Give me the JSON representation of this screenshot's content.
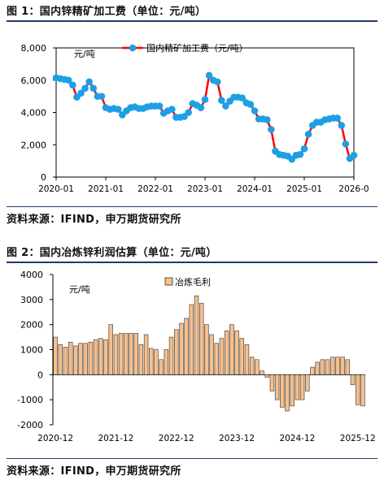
{
  "figure1": {
    "caption": "图 1：国内锌精矿加工费（单位：元/吨）",
    "source": "资料来源：IFIND，申万期货研究所",
    "chart_data": {
      "type": "line",
      "title": "",
      "unit_label": "元/吨",
      "ylim": [
        0,
        8000
      ],
      "yticks": [
        "0",
        "2,000",
        "4,000",
        "6,000",
        "8,000"
      ],
      "ytick_values": [
        0,
        2000,
        4000,
        6000,
        8000
      ],
      "xtick_labels": [
        "2020-01",
        "2021-01",
        "2022-01",
        "2023-01",
        "2024-01",
        "2025-01",
        "2026-0"
      ],
      "xtick_index": [
        0,
        12,
        24,
        36,
        48,
        60,
        72
      ],
      "legend_position": "top-center",
      "series": [
        {
          "name": "国内精矿加工费（元/吨）",
          "color": "#ff0000",
          "marker_color": "#1e9fe3",
          "values": [
            6150,
            6100,
            6050,
            6000,
            5700,
            4950,
            5200,
            5500,
            5900,
            5500,
            5000,
            5000,
            4300,
            4200,
            4250,
            4200,
            3850,
            4100,
            4300,
            4350,
            4250,
            4250,
            4350,
            4400,
            4400,
            4400,
            3950,
            4100,
            4200,
            3700,
            3700,
            3750,
            4000,
            4550,
            4450,
            4300,
            4800,
            6300,
            6000,
            5900,
            4750,
            4400,
            4700,
            4950,
            4950,
            4900,
            4600,
            4500,
            4100,
            3600,
            3600,
            3550,
            2950,
            1600,
            1400,
            1350,
            1300,
            1100,
            1350,
            1400,
            1750,
            2650,
            3200,
            3400,
            3400,
            3550,
            3600,
            3650,
            3650,
            3200,
            2050,
            1150,
            1350
          ]
        }
      ]
    }
  },
  "figure2": {
    "caption": "图 2：国内冶炼锌利润估算（单位：元/吨）",
    "source": "资料来源：IFIND，申万期货研究所",
    "chart_data": {
      "type": "bar",
      "title": "",
      "unit_label": "元/吨",
      "ylim": [
        -2000,
        4000
      ],
      "yticks": [
        "-2000",
        "-1000",
        "0",
        "1000",
        "2000",
        "3000",
        "4000"
      ],
      "ytick_values": [
        -2000,
        -1000,
        0,
        1000,
        2000,
        3000,
        4000
      ],
      "xtick_labels": [
        "2020-12",
        "2021-12",
        "2022-12",
        "2023-12",
        "2024-12",
        "2025-12"
      ],
      "xtick_index": [
        0,
        12,
        24,
        36,
        48,
        60
      ],
      "legend_position": "top-center",
      "series": [
        {
          "name": "冶炼毛利",
          "color": "#f6bf8c",
          "edge_color": "#333333",
          "values": [
            1500,
            1200,
            1100,
            1300,
            1150,
            1250,
            1250,
            1300,
            1400,
            1450,
            1400,
            2000,
            1600,
            1650,
            1650,
            1650,
            1650,
            1200,
            1600,
            1050,
            1000,
            600,
            1000,
            1500,
            1800,
            2050,
            2250,
            2800,
            3150,
            2850,
            2000,
            1600,
            1250,
            1450,
            1750,
            2000,
            1750,
            1450,
            1200,
            700,
            600,
            150,
            -100,
            -650,
            -1000,
            -1300,
            -1450,
            -1250,
            -1000,
            -1000,
            -650,
            300,
            500,
            600,
            600,
            700,
            700,
            700,
            600,
            -400,
            -1200,
            -1250
          ]
        }
      ]
    }
  }
}
